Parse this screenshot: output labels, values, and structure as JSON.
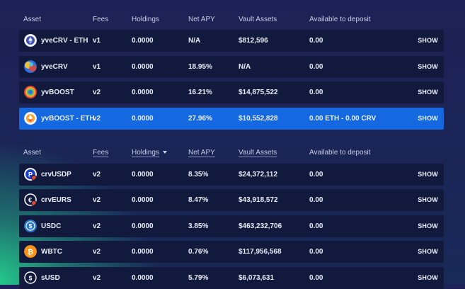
{
  "sections": [
    {
      "headers": {
        "asset": "Asset",
        "fees": "Fees",
        "holdings": "Holdings",
        "net_apy": "Net APY",
        "vault_assets": "Vault Assets",
        "available": "Available to deposit"
      },
      "rows": [
        {
          "name": "yveCRV - ETH",
          "icon": "eth-crv-lp-icon",
          "fees": "v1",
          "holdings": "0.0000",
          "net_apy": "N/A",
          "vault_assets": "$812,596",
          "available": "0.00",
          "action": "SHOW"
        },
        {
          "name": "yveCRV",
          "icon": "yvecrv-icon",
          "fees": "v1",
          "holdings": "0.0000",
          "net_apy": "18.95%",
          "vault_assets": "N/A",
          "available": "0.00",
          "action": "SHOW"
        },
        {
          "name": "yvBOOST",
          "icon": "yvboost-icon",
          "fees": "v2",
          "holdings": "0.0000",
          "net_apy": "16.21%",
          "vault_assets": "$14,875,522",
          "available": "0.00",
          "action": "SHOW"
        },
        {
          "name": "yvBOOST - ETH",
          "icon": "yvboost-eth-lp-icon",
          "fees": "v2",
          "holdings": "0.0000",
          "net_apy": "27.96%",
          "vault_assets": "$10,552,828",
          "available": "0.00 ETH - 0.00 CRV",
          "action": "SHOW",
          "highlighted": true
        }
      ]
    },
    {
      "headers": {
        "asset": "Asset",
        "fees": "Fees",
        "holdings": "Holdings",
        "net_apy": "Net APY",
        "vault_assets": "Vault Assets",
        "available": "Available to deposit"
      },
      "rows": [
        {
          "name": "crvUSDP",
          "icon": "crvusdp-icon",
          "fees": "v2",
          "holdings": "0.0000",
          "net_apy": "8.35%",
          "vault_assets": "$24,372,112",
          "available": "0.00",
          "action": "SHOW"
        },
        {
          "name": "crvEURS",
          "icon": "crveurs-icon",
          "fees": "v2",
          "holdings": "0.0000",
          "net_apy": "8.47%",
          "vault_assets": "$43,918,572",
          "available": "0.00",
          "action": "SHOW"
        },
        {
          "name": "USDC",
          "icon": "usdc-icon",
          "fees": "v2",
          "holdings": "0.0000",
          "net_apy": "3.85%",
          "vault_assets": "$463,232,706",
          "available": "0.00",
          "action": "SHOW"
        },
        {
          "name": "WBTC",
          "icon": "wbtc-icon",
          "fees": "v2",
          "holdings": "0.0000",
          "net_apy": "0.76%",
          "vault_assets": "$117,956,568",
          "available": "0.00",
          "action": "SHOW"
        },
        {
          "name": "sUSD",
          "icon": "susd-icon",
          "fees": "v2",
          "holdings": "0.0000",
          "net_apy": "5.79%",
          "vault_assets": "$6,073,631",
          "available": "0.00",
          "action": "SHOW"
        }
      ]
    }
  ],
  "colors": {
    "row_bg": "#111a3c",
    "row_highlight": "#1569e0",
    "accent_green": "#26d791"
  }
}
